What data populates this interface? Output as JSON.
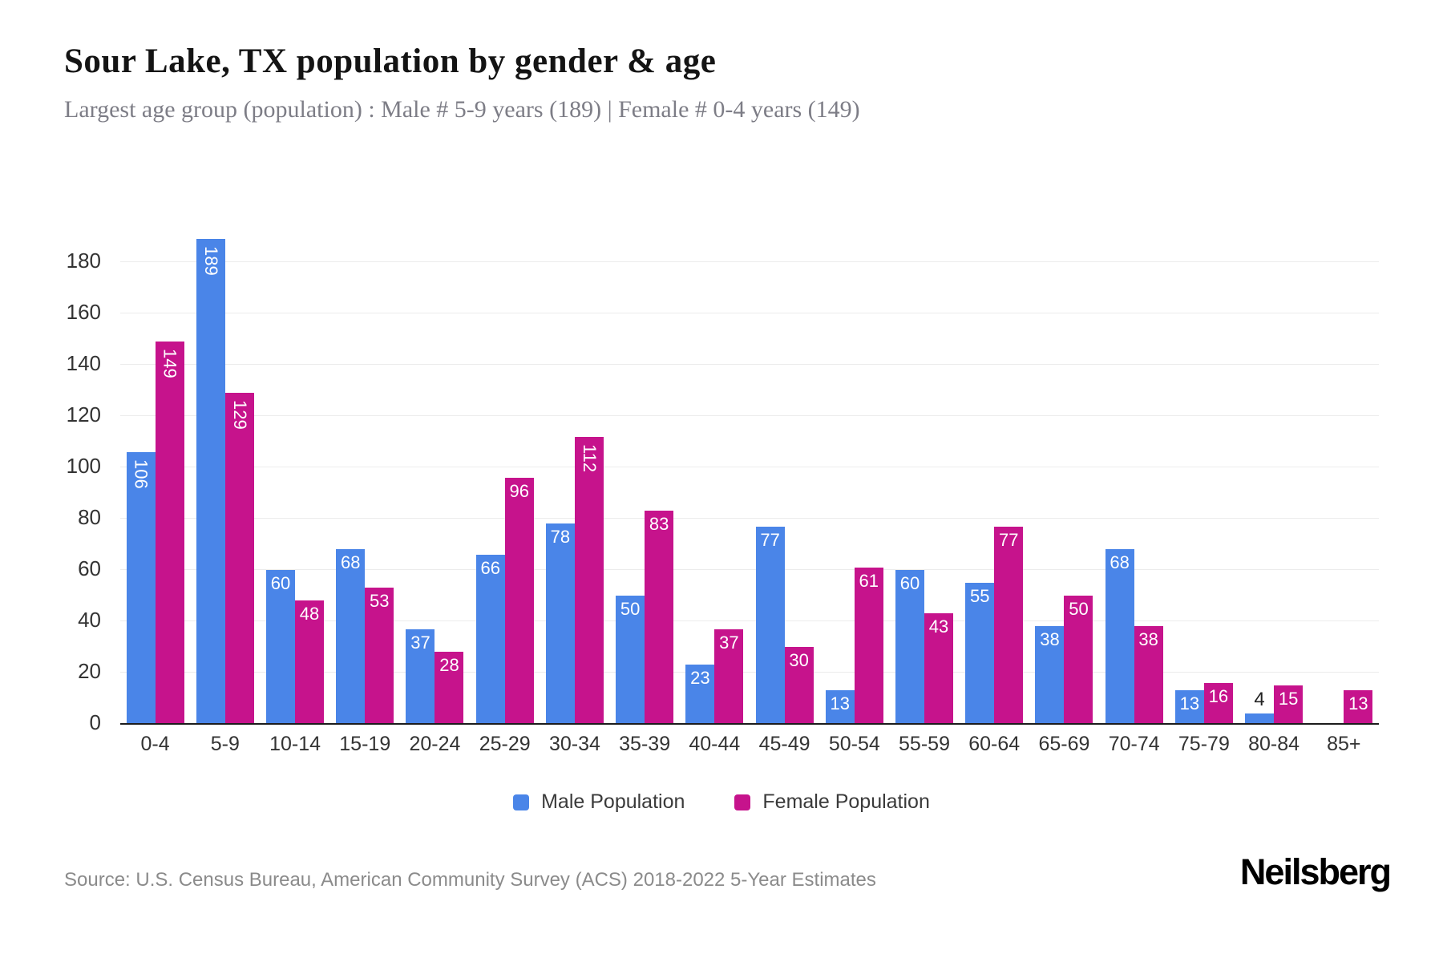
{
  "chart_data": {
    "type": "bar",
    "title": "Sour Lake, TX population by gender & age",
    "subtitle": "Largest age group (population) : Male # 5-9 years (189) | Female # 0-4 years (149)",
    "categories": [
      "0-4",
      "5-9",
      "10-14",
      "15-19",
      "20-24",
      "25-29",
      "30-34",
      "35-39",
      "40-44",
      "45-49",
      "50-54",
      "55-59",
      "60-64",
      "65-69",
      "70-74",
      "75-79",
      "80-84",
      "85+"
    ],
    "series": [
      {
        "name": "Male Population",
        "color": "#4A85E8",
        "values": [
          106,
          189,
          60,
          68,
          37,
          66,
          78,
          50,
          23,
          77,
          13,
          60,
          55,
          38,
          68,
          13,
          4,
          0
        ]
      },
      {
        "name": "Female Population",
        "color": "#C6138C",
        "values": [
          149,
          129,
          48,
          53,
          28,
          96,
          112,
          83,
          37,
          30,
          61,
          43,
          77,
          50,
          38,
          16,
          15,
          13
        ]
      }
    ],
    "xlabel": "",
    "ylabel": "",
    "ylim": [
      0,
      200
    ],
    "yticks": [
      0,
      20,
      40,
      60,
      80,
      100,
      120,
      140,
      160,
      180
    ],
    "grid": true,
    "legend_position": "bottom",
    "value_label_style": "white inside bar top; rotated vertical when 3 digits; dark label above bar when bar too short; no label for zero"
  },
  "footer": {
    "source": "Source: U.S. Census Bureau, American Community Survey (ACS) 2018-2022 5-Year Estimates",
    "brand": "Neilsberg"
  }
}
